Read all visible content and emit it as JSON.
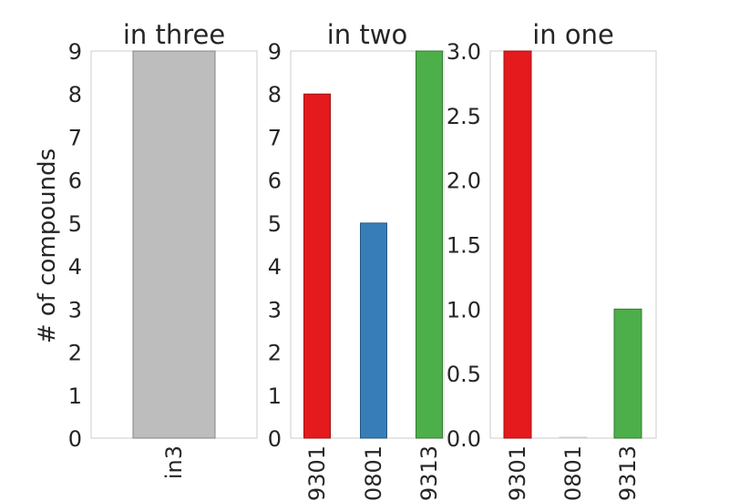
{
  "ylabel": "# of compounds",
  "chart_data": [
    {
      "type": "bar",
      "title": "in three",
      "categories": [
        "in3"
      ],
      "values": [
        9
      ],
      "colors": [
        "#bdbdbd"
      ],
      "ylim": [
        0,
        9
      ],
      "yticks": [
        "0",
        "1",
        "2",
        "3",
        "4",
        "5",
        "6",
        "7",
        "8",
        "9"
      ],
      "ylabel": "# of compounds",
      "grid": false
    },
    {
      "type": "bar",
      "title": "in two",
      "categories": [
        "9301",
        "0801",
        "9313"
      ],
      "values": [
        8,
        5,
        9
      ],
      "colors": [
        "#e41a1c",
        "#377eb8",
        "#4daf4a"
      ],
      "ylim": [
        0,
        9
      ],
      "yticks": [
        "0",
        "1",
        "2",
        "3",
        "4",
        "5",
        "6",
        "7",
        "8",
        "9"
      ],
      "grid": false
    },
    {
      "type": "bar",
      "title": "in one",
      "categories": [
        "9301",
        "0801",
        "9313"
      ],
      "values": [
        3,
        0,
        1
      ],
      "colors": [
        "#e41a1c",
        "#377eb8",
        "#4daf4a"
      ],
      "ylim": [
        0,
        3
      ],
      "yticks": [
        "0.0",
        "0.5",
        "1.0",
        "1.5",
        "2.0",
        "2.5",
        "3.0"
      ],
      "grid": false
    }
  ]
}
